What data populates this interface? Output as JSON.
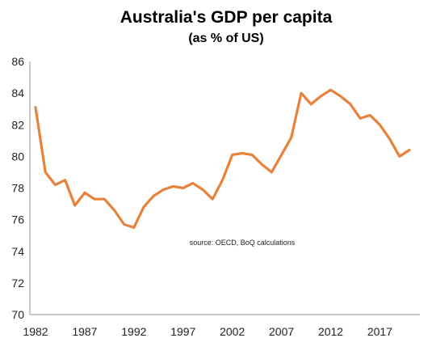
{
  "chart_data": {
    "type": "line",
    "title": "Australia's  GDP per capita",
    "subtitle": "(as %  of US)",
    "xlabel": "",
    "ylabel": "",
    "annotation": "source:  OECD, BoQ calculations",
    "xlim": [
      1982,
      2020
    ],
    "ylim": [
      70,
      86
    ],
    "x_ticks": [
      1982,
      1987,
      1992,
      1997,
      2002,
      2007,
      2012,
      2017
    ],
    "y_ticks": [
      70,
      72,
      74,
      76,
      78,
      80,
      82,
      84,
      86
    ],
    "grid": false,
    "legend": "none",
    "series_color": "#E8823A",
    "series": [
      {
        "x": [
          1982,
          1983,
          1984,
          1985,
          1986,
          1987,
          1988,
          1989,
          1990,
          1991,
          1992,
          1993,
          1994,
          1995,
          1996,
          1997,
          1998,
          1999,
          2000,
          2001,
          2002,
          2003,
          2004,
          2005,
          2006,
          2007,
          2008,
          2009,
          2010,
          2011,
          2012,
          2013,
          2014,
          2015,
          2016,
          2017,
          2018,
          2019,
          2020
        ],
        "values": [
          83.1,
          79.0,
          78.2,
          78.5,
          76.9,
          77.7,
          77.3,
          77.3,
          76.6,
          75.7,
          75.5,
          76.8,
          77.5,
          77.9,
          78.1,
          78.0,
          78.3,
          77.9,
          77.3,
          78.5,
          80.1,
          80.2,
          80.1,
          79.5,
          79.0,
          80.1,
          81.2,
          84.0,
          83.3,
          83.8,
          84.2,
          83.8,
          83.3,
          82.4,
          82.6,
          82.0,
          81.1,
          80.0,
          80.4
        ]
      }
    ]
  }
}
